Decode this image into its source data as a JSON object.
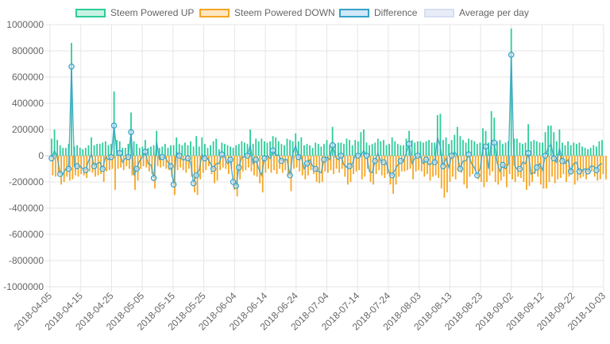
{
  "colors": {
    "up_fill": "#c9f2e4",
    "up_line": "#2ecc9a",
    "down_fill": "#ffe6c2",
    "down_line": "#f5a623",
    "diff_fill": "#d0e8f8",
    "diff_line": "#36a2c8",
    "avg_fill": "#e7ecf8",
    "avg_line": "#d6def2",
    "grid": "#e6e6e6",
    "zero": "#c8c8c8"
  },
  "legend": [
    {
      "key": "up",
      "label": "Steem Powered UP",
      "icon": "swatch-green"
    },
    {
      "key": "down",
      "label": "Steem Powered DOWN",
      "icon": "swatch-orange"
    },
    {
      "key": "diff",
      "label": "Difference",
      "icon": "swatch-blue"
    },
    {
      "key": "avg",
      "label": "Average per day",
      "icon": "swatch-lavender"
    }
  ],
  "chart_data": {
    "type": "bar",
    "ylim": [
      -1000000,
      1000000
    ],
    "y_ticks": [
      "1000000",
      "800000",
      "600000",
      "400000",
      "200000",
      "0",
      "-200000",
      "-400000",
      "-600000",
      "-800000",
      "-1000000"
    ],
    "x_tick_labels": [
      "2018-04-05",
      "2018-04-15",
      "2018-04-25",
      "2018-05-05",
      "2018-05-15",
      "2018-05-25",
      "2018-06-04",
      "2018-06-14",
      "2018-06-24",
      "2018-07-04",
      "2018-07-14",
      "2018-07-24",
      "2018-08-03",
      "2018-08-13",
      "2018-08-23",
      "2018-09-02",
      "2018-09-12",
      "2018-09-22",
      "2018-10-03"
    ],
    "start_date": "2018-04-05",
    "grid": true,
    "legend_position": "top",
    "series": [
      {
        "name": "Steem Powered UP",
        "type": "bar",
        "values": [
          130000,
          200000,
          120000,
          80000,
          60000,
          60000,
          90000,
          860000,
          70000,
          80000,
          60000,
          50000,
          60000,
          80000,
          140000,
          80000,
          90000,
          90000,
          100000,
          110000,
          80000,
          90000,
          490000,
          120000,
          110000,
          60000,
          60000,
          90000,
          330000,
          110000,
          90000,
          60000,
          70000,
          120000,
          60000,
          70000,
          80000,
          190000,
          60000,
          70000,
          90000,
          60000,
          80000,
          80000,
          140000,
          90000,
          80000,
          100000,
          80000,
          110000,
          70000,
          150000,
          70000,
          140000,
          90000,
          60000,
          80000,
          110000,
          130000,
          50000,
          100000,
          90000,
          80000,
          70000,
          60000,
          80000,
          90000,
          110000,
          100000,
          90000,
          200000,
          90000,
          130000,
          110000,
          130000,
          110000,
          100000,
          110000,
          150000,
          140000,
          110000,
          90000,
          80000,
          130000,
          120000,
          110000,
          170000,
          110000,
          140000,
          80000,
          90000,
          80000,
          60000,
          100000,
          90000,
          70000,
          90000,
          120000,
          80000,
          220000,
          90000,
          100000,
          100000,
          90000,
          130000,
          120000,
          80000,
          120000,
          110000,
          180000,
          200000,
          100000,
          80000,
          90000,
          100000,
          130000,
          110000,
          120000,
          80000,
          90000,
          140000,
          110000,
          90000,
          80000,
          80000,
          130000,
          190000,
          120000,
          100000,
          110000,
          110000,
          100000,
          110000,
          120000,
          100000,
          100000,
          310000,
          320000,
          120000,
          140000,
          90000,
          120000,
          160000,
          220000,
          150000,
          120000,
          100000,
          130000,
          120000,
          110000,
          90000,
          100000,
          210000,
          190000,
          100000,
          340000,
          290000,
          110000,
          120000,
          90000,
          100000,
          110000,
          970000,
          130000,
          130000,
          100000,
          90000,
          100000,
          240000,
          110000,
          120000,
          110000,
          100000,
          100000,
          180000,
          230000,
          230000,
          180000,
          110000,
          200000,
          100000,
          80000,
          110000,
          80000,
          100000,
          90000,
          100000,
          70000,
          60000,
          50000,
          60000,
          80000,
          70000,
          110000,
          120000
        ]
      },
      {
        "name": "Steem Powered DOWN",
        "type": "bar",
        "values": [
          -150000,
          -160000,
          -130000,
          -220000,
          -200000,
          -160000,
          -190000,
          -180000,
          -150000,
          -160000,
          -140000,
          -150000,
          -170000,
          -120000,
          -130000,
          -160000,
          -150000,
          -140000,
          -200000,
          -120000,
          -110000,
          -100000,
          -260000,
          -100000,
          -90000,
          -110000,
          -80000,
          -100000,
          -150000,
          -260000,
          -190000,
          -100000,
          -80000,
          -90000,
          -120000,
          -140000,
          -250000,
          -80000,
          -90000,
          -80000,
          -100000,
          -110000,
          -160000,
          -300000,
          -110000,
          -90000,
          -110000,
          -130000,
          -100000,
          -160000,
          -280000,
          -300000,
          -180000,
          -130000,
          -110000,
          -80000,
          -140000,
          -210000,
          -190000,
          -110000,
          -90000,
          -100000,
          -140000,
          -100000,
          -260000,
          -310000,
          -180000,
          -120000,
          -110000,
          -90000,
          -120000,
          -150000,
          -160000,
          -210000,
          -280000,
          -130000,
          -100000,
          -130000,
          -110000,
          -140000,
          -100000,
          -130000,
          -110000,
          -160000,
          -270000,
          -100000,
          -90000,
          -120000,
          -150000,
          -180000,
          -150000,
          -110000,
          -140000,
          -200000,
          -210000,
          -200000,
          -120000,
          -130000,
          -110000,
          -140000,
          -100000,
          -130000,
          -100000,
          -160000,
          -220000,
          -200000,
          -140000,
          -120000,
          -110000,
          -180000,
          -160000,
          -100000,
          -200000,
          -220000,
          -140000,
          -110000,
          -150000,
          -170000,
          -140000,
          -220000,
          -290000,
          -220000,
          -160000,
          -120000,
          -120000,
          -110000,
          -100000,
          -180000,
          -120000,
          -110000,
          -120000,
          -160000,
          -140000,
          -190000,
          -160000,
          -150000,
          -170000,
          -250000,
          -320000,
          -280000,
          -200000,
          -160000,
          -180000,
          -120000,
          -130000,
          -220000,
          -250000,
          -160000,
          -140000,
          -120000,
          -180000,
          -200000,
          -240000,
          -200000,
          -150000,
          -120000,
          -200000,
          -220000,
          -190000,
          -160000,
          -240000,
          -140000,
          -180000,
          -200000,
          -160000,
          -170000,
          -200000,
          -260000,
          -230000,
          -200000,
          -140000,
          -160000,
          -220000,
          -250000,
          -250000,
          -200000,
          -160000,
          -210000,
          -180000,
          -170000,
          -140000,
          -200000,
          -160000,
          -140000,
          -220000,
          -190000,
          -170000,
          -160000,
          -180000,
          -140000,
          -120000,
          -160000,
          -190000,
          -180000,
          -140000,
          -180000
        ]
      },
      {
        "name": "Difference",
        "type": "line",
        "values": [
          -20000,
          40000,
          -10000,
          -140000,
          -140000,
          -100000,
          -100000,
          680000,
          -80000,
          -80000,
          -80000,
          -100000,
          -110000,
          -40000,
          10000,
          -80000,
          -60000,
          -50000,
          -100000,
          -10000,
          -30000,
          -10000,
          230000,
          20000,
          20000,
          -50000,
          -20000,
          -10000,
          180000,
          -150000,
          -100000,
          -40000,
          -10000,
          30000,
          -60000,
          -70000,
          -170000,
          110000,
          -30000,
          -10000,
          -10000,
          -50000,
          -80000,
          -220000,
          30000,
          0,
          -30000,
          -30000,
          -20000,
          -50000,
          -210000,
          -150000,
          -110000,
          10000,
          -20000,
          -20000,
          -60000,
          -100000,
          -60000,
          -60000,
          10000,
          -10000,
          -60000,
          -30000,
          -200000,
          -230000,
          -90000,
          -10000,
          -10000,
          0,
          80000,
          -60000,
          -30000,
          -100000,
          -150000,
          -20000,
          0,
          -20000,
          40000,
          0,
          10000,
          -40000,
          -30000,
          -30000,
          -150000,
          10000,
          80000,
          -10000,
          -10000,
          -100000,
          -60000,
          -30000,
          -80000,
          -100000,
          -120000,
          -130000,
          -30000,
          -10000,
          -30000,
          80000,
          -10000,
          -30000,
          0,
          -70000,
          -90000,
          -80000,
          -60000,
          0,
          0,
          0,
          40000,
          0,
          -120000,
          -130000,
          -40000,
          20000,
          -40000,
          -50000,
          -60000,
          -130000,
          -150000,
          -110000,
          -70000,
          -40000,
          -40000,
          20000,
          90000,
          -60000,
          -20000,
          0,
          -10000,
          -60000,
          -30000,
          -70000,
          -60000,
          -50000,
          140000,
          70000,
          -80000,
          -20000,
          -90000,
          0,
          30000,
          0,
          -100000,
          -40000,
          -40000,
          10000,
          -60000,
          -90000,
          -150000,
          -100000,
          60000,
          70000,
          -100000,
          120000,
          100000,
          -50000,
          -120000,
          -70000,
          -100000,
          -60000,
          770000,
          -70000,
          -100000,
          -100000,
          -50000,
          -60000,
          20000,
          -140000,
          -130000,
          -90000,
          -60000,
          -110000,
          0,
          60000,
          90000,
          -20000,
          -50000,
          60000,
          -40000,
          -60000,
          -30000,
          -120000,
          -60000,
          -50000,
          -120000,
          -110000,
          -100000,
          -120000,
          -80000,
          -80000,
          -110000,
          -70000,
          -60000
        ]
      },
      {
        "name": "Average per day",
        "type": "line",
        "values": []
      }
    ]
  }
}
